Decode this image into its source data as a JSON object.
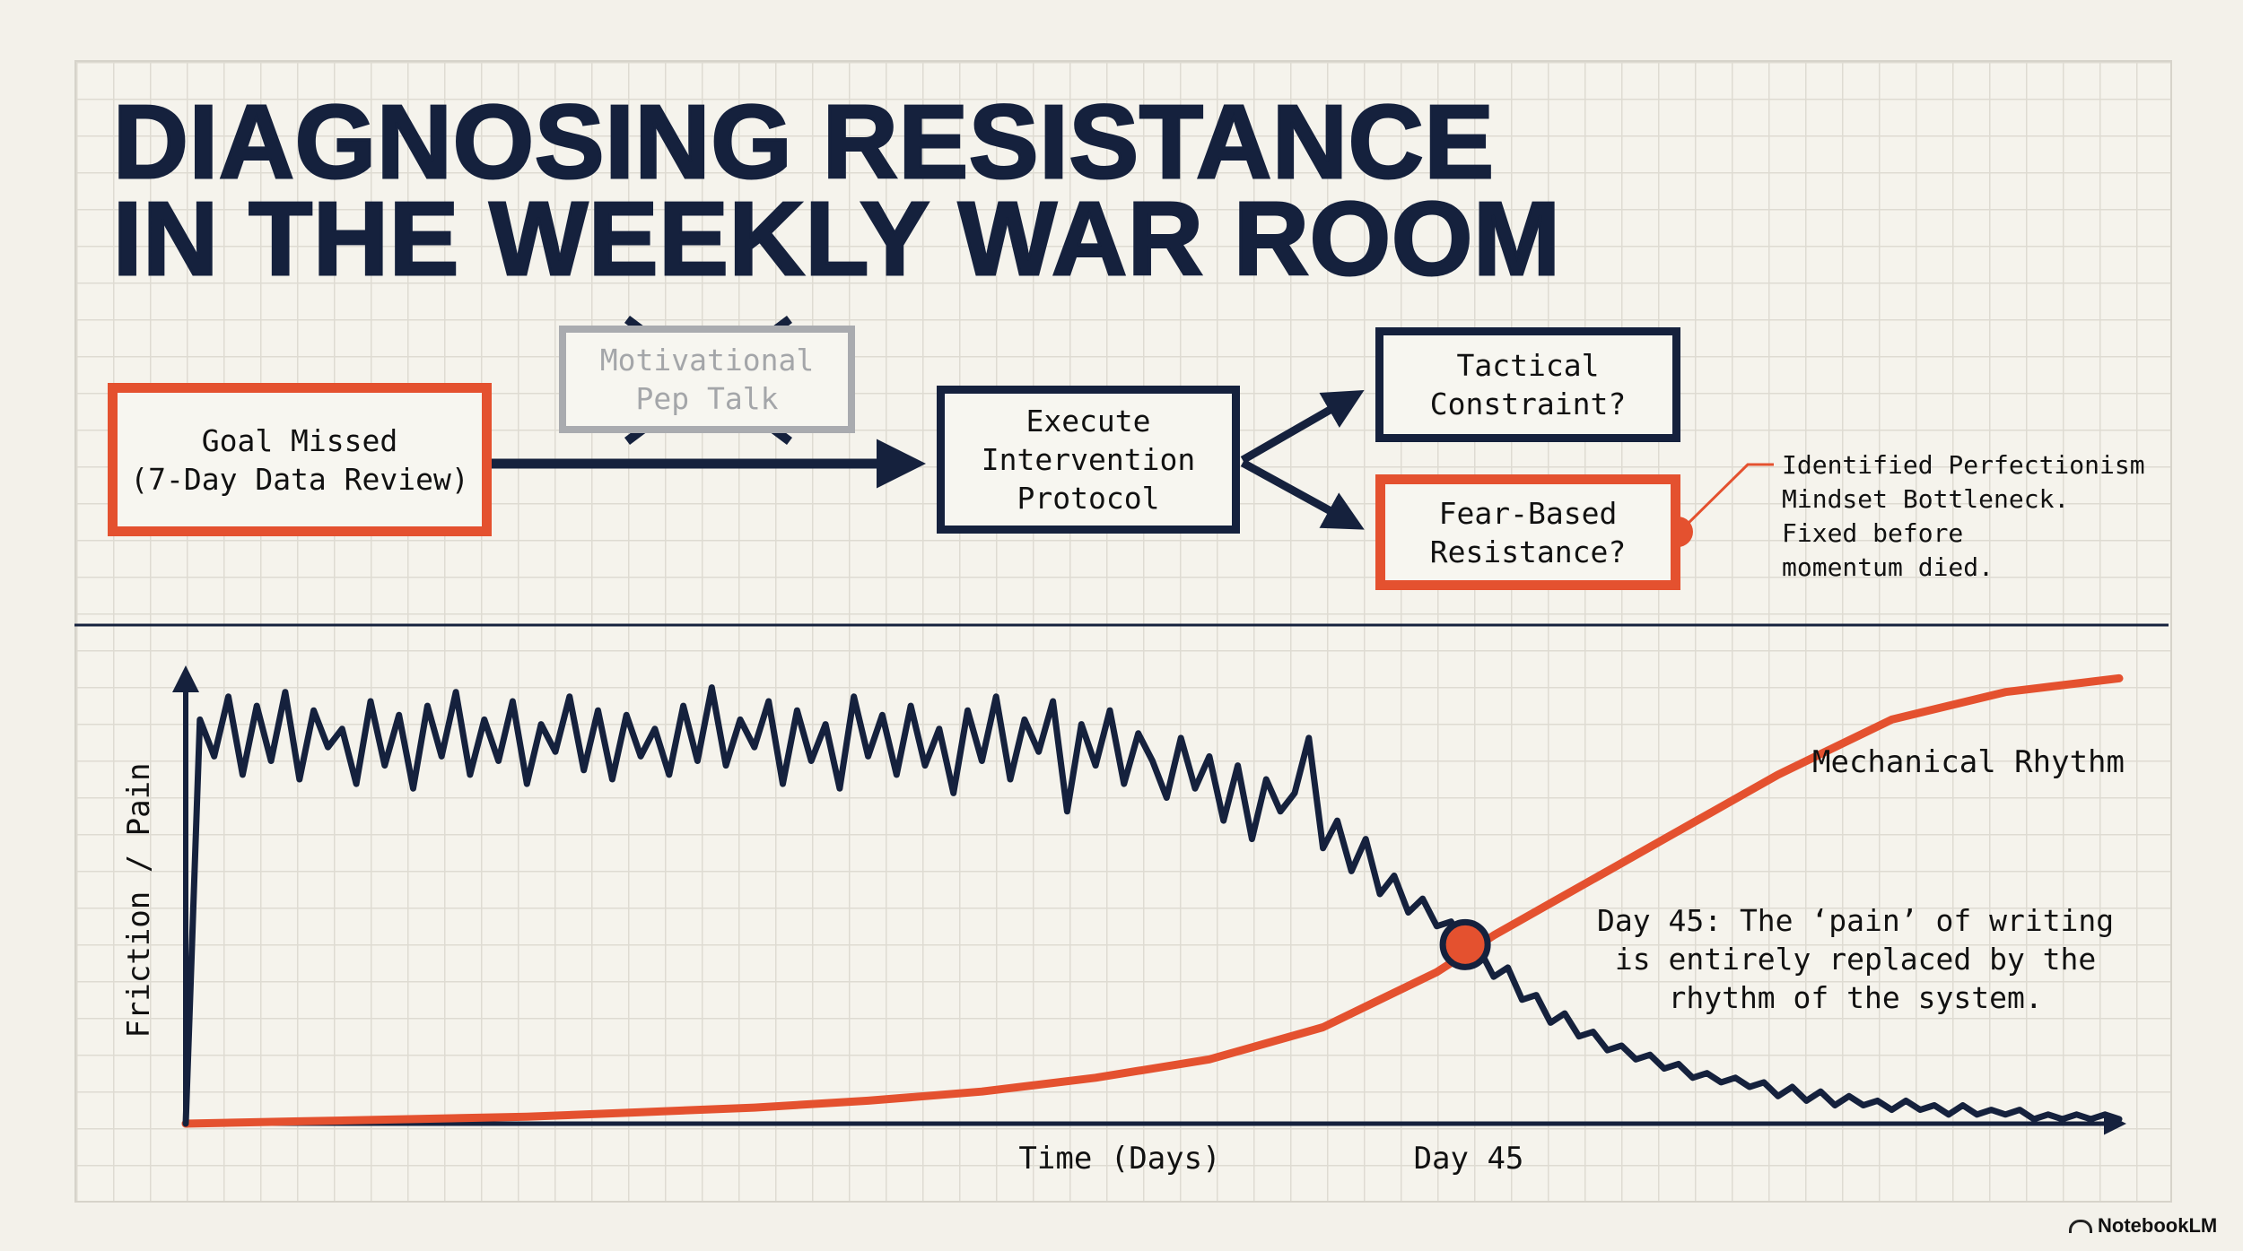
{
  "title": {
    "line1": "DIAGNOSING RESISTANCE",
    "line2": "IN THE WEEKLY WAR ROOM"
  },
  "flow": {
    "goal_missed": "Goal Missed\n(7-Day Data Review)",
    "pep_talk": "Motivational\nPep Talk",
    "execute": "Execute\nIntervention\nProtocol",
    "tactical": "Tactical\nConstraint?",
    "fear": "Fear-Based\nResistance?",
    "callout": "Identified Perfectionism\nMindset Bottleneck.\nFixed before\nmomentum died."
  },
  "colors": {
    "navy": "#15213d",
    "orange": "#e4512f",
    "gray": "#a9abaf"
  },
  "chart_data": {
    "type": "line",
    "xlabel": "Time (Days)",
    "ylabel": "Friction / Pain",
    "xlim": [
      0,
      68
    ],
    "ylim": [
      0,
      100
    ],
    "x_marker_label": "Day 45",
    "series": [
      {
        "name": "Friction / Pain",
        "color": "#15213d",
        "x_start": 0,
        "x_step": 0.5,
        "values": [
          0,
          88,
          80,
          93,
          76,
          91,
          79,
          94,
          75,
          90,
          82,
          86,
          74,
          92,
          78,
          89,
          73,
          91,
          80,
          94,
          76,
          88,
          79,
          92,
          74,
          87,
          81,
          93,
          77,
          90,
          75,
          89,
          80,
          86,
          76,
          91,
          79,
          95,
          78,
          88,
          82,
          92,
          74,
          90,
          79,
          87,
          73,
          93,
          80,
          89,
          76,
          91,
          78,
          86,
          72,
          90,
          79,
          93,
          75,
          88,
          81,
          92,
          68,
          87,
          78,
          90,
          74,
          85,
          79,
          71,
          84,
          73,
          80,
          66,
          78,
          62,
          75,
          68,
          72,
          84,
          60,
          66,
          55,
          62,
          50,
          54,
          46,
          49,
          43,
          44,
          39,
          38,
          32,
          34,
          27,
          28,
          22,
          24,
          19,
          20,
          16,
          17,
          14,
          15,
          12,
          13,
          10,
          11,
          9,
          10,
          8,
          9,
          6,
          8,
          5,
          7,
          4,
          6,
          4,
          5,
          3,
          5,
          3,
          4,
          2,
          4,
          2,
          3,
          2,
          3,
          1,
          2,
          1,
          2,
          1,
          2,
          1
        ]
      },
      {
        "name": "Mechanical Rhythm",
        "color": "#e4512f",
        "x": [
          0,
          4,
          8,
          12,
          16,
          20,
          24,
          28,
          32,
          36,
          40,
          44,
          46,
          48,
          50,
          52,
          56,
          60,
          64,
          68
        ],
        "values": [
          0,
          0.5,
          1,
          1.5,
          2.5,
          3.5,
          5,
          7,
          10,
          14,
          21,
          33,
          41,
          48,
          55,
          62,
          76,
          88,
          94,
          97
        ]
      }
    ],
    "annotations": [
      {
        "x": 45,
        "y": 39,
        "text": "Day 45: The ‘pain’ of writing\nis entirely replaced by the\nrhythm of the system."
      },
      {
        "text": "Mechanical Rhythm"
      }
    ]
  },
  "branding": "NotebookLM"
}
